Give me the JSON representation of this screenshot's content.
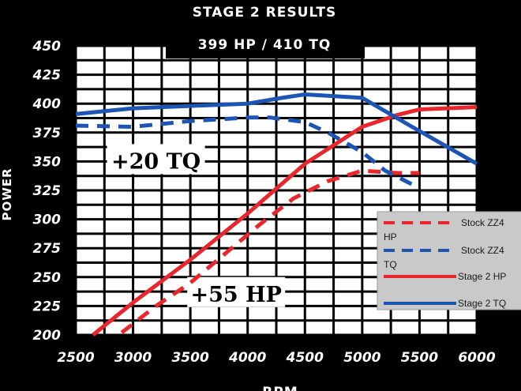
{
  "chart_data": {
    "type": "line",
    "title": "STAGE 2 RESULTS",
    "subtitle": "399 HP / 410 TQ",
    "xlabel": "RPM",
    "ylabel": "POWER",
    "xlim": [
      2500,
      6000
    ],
    "ylim": [
      200,
      450
    ],
    "x_ticks": [
      "2500",
      "3000",
      "3500",
      "4000",
      "4500",
      "5000",
      "5500",
      "6000"
    ],
    "y_ticks": [
      "200",
      "225",
      "250",
      "275",
      "300",
      "325",
      "350",
      "375",
      "400",
      "425",
      "450"
    ],
    "grid": true,
    "legend_position": "bottom-right",
    "annotations": [
      {
        "text": "+20 TQ",
        "x": 3200,
        "y": 350
      },
      {
        "text": "+55 HP",
        "x": 3900,
        "y": 235
      }
    ],
    "series": [
      {
        "name": "Stock ZZ4 HP",
        "color": "#e8262c",
        "dash": true,
        "x": [
          2900,
          3200,
          3500,
          3800,
          4100,
          4400,
          4700,
          5000,
          5300,
          5500
        ],
        "y": [
          202,
          225,
          245,
          270,
          295,
          318,
          333,
          342,
          340,
          340
        ]
      },
      {
        "name": "Stock ZZ4 TQ",
        "color": "#1c55b3",
        "dash": true,
        "x": [
          2500,
          3000,
          3500,
          4000,
          4200,
          4500,
          4700,
          5000,
          5200,
          5500
        ],
        "y": [
          381,
          380,
          385,
          388,
          388,
          384,
          375,
          358,
          342,
          327
        ]
      },
      {
        "name": "Stage 2 HP",
        "color": "#e8262c",
        "dash": false,
        "x": [
          2650,
          3000,
          3500,
          4000,
          4500,
          5000,
          5300,
          5500,
          6000
        ],
        "y": [
          200,
          228,
          265,
          305,
          348,
          380,
          390,
          395,
          397
        ]
      },
      {
        "name": "Stage 2 TQ",
        "color": "#1c55b3",
        "dash": false,
        "x": [
          2500,
          3000,
          3500,
          4000,
          4300,
          4500,
          5000,
          5400,
          5700,
          6000
        ],
        "y": [
          391,
          396,
          398,
          400,
          405,
          408,
          405,
          382,
          365,
          348
        ]
      }
    ]
  }
}
